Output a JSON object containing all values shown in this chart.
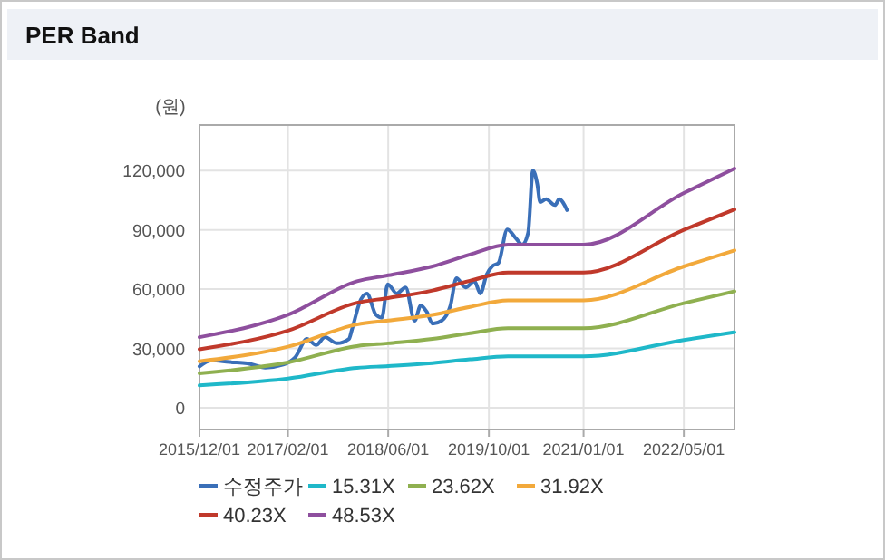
{
  "chart_data": {
    "type": "line",
    "title": "PER Band",
    "ylabel": "(원)",
    "xlim": [
      "2015-12-01",
      "2023-01-01"
    ],
    "xticks": [
      {
        "value": "2015-12-01",
        "label": "2015/12/01"
      },
      {
        "value": "2017-02-01",
        "label": "2017/02/01"
      },
      {
        "value": "2018-06-01",
        "label": "2018/06/01"
      },
      {
        "value": "2019-10-01",
        "label": "2019/10/01"
      },
      {
        "value": "2021-01-01",
        "label": "2021/01/01"
      },
      {
        "value": "2022-05-01",
        "label": "2022/05/01"
      }
    ],
    "ylim": [
      -11000,
      143000
    ],
    "yticks": [
      {
        "value": 0,
        "label": "0"
      },
      {
        "value": 30000,
        "label": "30,000"
      },
      {
        "value": 60000,
        "label": "60,000"
      },
      {
        "value": 90000,
        "label": "90,000"
      },
      {
        "value": 120000,
        "label": "120,000"
      }
    ],
    "grid": true,
    "legend": "bottom",
    "marker": "none",
    "line_style": "solid",
    "series": [
      {
        "name": "수정주가",
        "color": "#3a6fb8",
        "x": [
          "2015-12-01",
          "2016-01-28",
          "2016-04-24",
          "2016-07-19",
          "2016-10-14",
          "2017-01-09",
          "2017-03-08",
          "2017-05-04",
          "2017-06-17",
          "2017-07-30",
          "2017-09-26",
          "2017-11-23",
          "2017-12-07",
          "2018-01-20",
          "2018-02-18",
          "2018-04-02",
          "2018-05-01",
          "2018-05-30",
          "2018-07-12",
          "2018-08-24",
          "2018-10-07",
          "2018-11-05",
          "2018-12-04",
          "2019-01-02",
          "2019-02-14",
          "2019-03-29",
          "2019-04-27",
          "2019-06-10",
          "2019-07-23",
          "2019-08-21",
          "2019-09-19",
          "2019-10-18",
          "2019-11-16",
          "2019-12-29",
          "2020-02-10",
          "2020-03-10",
          "2020-04-08",
          "2020-05-01",
          "2020-05-22",
          "2020-06-05",
          "2020-07-04",
          "2020-08-16",
          "2020-09-05",
          "2020-10-13"
        ],
        "values": [
          20900,
          24000,
          23100,
          22500,
          20300,
          21800,
          25500,
          34800,
          31700,
          35700,
          32600,
          34800,
          39400,
          54800,
          57800,
          47100,
          45500,
          62500,
          57800,
          60900,
          44000,
          51700,
          48600,
          42500,
          44000,
          51700,
          65500,
          60900,
          64000,
          57800,
          67100,
          71700,
          73200,
          90200,
          85500,
          82500,
          88600,
          120000,
          113200,
          104000,
          105500,
          102500,
          105500,
          100000
        ]
      },
      {
        "name": "15.31X",
        "color": "#1fb8c9",
        "x": [
          "2015-12-01",
          "2017-02-01",
          "2018-01-01",
          "2018-06-01",
          "2019-01-01",
          "2019-07-01",
          "2020-01-01",
          "2021-01-01",
          "2022-05-01",
          "2023-01-01"
        ],
        "values": [
          11300,
          14800,
          20200,
          21100,
          22600,
          24500,
          26000,
          26000,
          34300,
          38200
        ]
      },
      {
        "name": "23.62X",
        "color": "#8fb050",
        "x": [
          "2015-12-01",
          "2017-02-01",
          "2018-01-01",
          "2018-06-01",
          "2019-01-01",
          "2019-07-01",
          "2020-01-01",
          "2021-01-01",
          "2022-05-01",
          "2023-01-01"
        ],
        "values": [
          17400,
          22900,
          31200,
          32600,
          34800,
          37700,
          40200,
          40200,
          52900,
          58900
        ]
      },
      {
        "name": "31.92X",
        "color": "#f2a93b",
        "x": [
          "2015-12-01",
          "2017-02-01",
          "2018-01-01",
          "2018-06-01",
          "2019-01-01",
          "2019-07-01",
          "2020-01-01",
          "2021-01-01",
          "2022-05-01",
          "2023-01-01"
        ],
        "values": [
          23500,
          30900,
          42100,
          44100,
          47000,
          51000,
          54300,
          54300,
          71500,
          79600
        ]
      },
      {
        "name": "40.23X",
        "color": "#c0392b",
        "x": [
          "2015-12-01",
          "2017-02-01",
          "2018-01-01",
          "2018-06-01",
          "2019-01-01",
          "2019-07-01",
          "2020-01-01",
          "2021-01-01",
          "2022-05-01",
          "2023-01-01"
        ],
        "values": [
          29600,
          39000,
          53100,
          55500,
          59300,
          64200,
          68400,
          68400,
          90000,
          100300
        ]
      },
      {
        "name": "48.53X",
        "color": "#8e4f9e",
        "x": [
          "2015-12-01",
          "2017-02-01",
          "2018-01-01",
          "2018-06-01",
          "2019-01-01",
          "2019-07-01",
          "2020-01-01",
          "2021-01-01",
          "2022-05-01",
          "2023-01-01"
        ],
        "values": [
          35700,
          47000,
          64000,
          67000,
          71500,
          77500,
          82500,
          82500,
          108600,
          121000
        ]
      }
    ]
  }
}
